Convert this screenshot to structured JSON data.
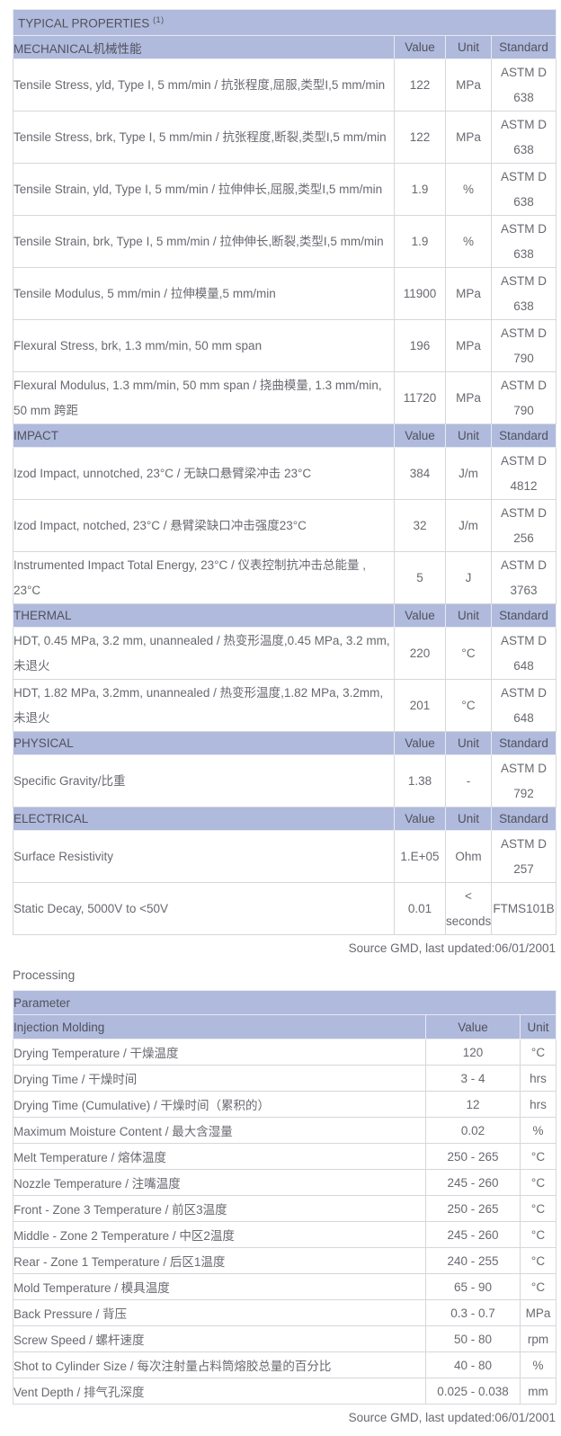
{
  "colors": {
    "header_bg": "#b0badc",
    "header_text": "#4f515c",
    "body_text": "#686970",
    "grid_line": "#d6d7dc",
    "outer_border": "#74757a"
  },
  "typical_properties": {
    "title": "TYPICAL PROPERTIES",
    "title_superscript": "(1)",
    "columns": [
      "Value",
      "Unit",
      "Standard"
    ],
    "sections": [
      {
        "name": "MECHANICAL机械性能",
        "rows": [
          {
            "property": "Tensile Stress, yld, Type I, 5 mm/min / 抗张程度,屈服,类型I,5 mm/min",
            "value": "122",
            "unit": "MPa",
            "standard": "ASTM D 638"
          },
          {
            "property": "Tensile Stress, brk, Type I, 5 mm/min / 抗张程度,断裂,类型I,5 mm/min",
            "value": "122",
            "unit": "MPa",
            "standard": "ASTM D 638"
          },
          {
            "property": "Tensile Strain, yld, Type I, 5 mm/min / 拉伸伸长,屈服,类型I,5 mm/min",
            "value": "1.9",
            "unit": "%",
            "standard": "ASTM D 638"
          },
          {
            "property": "Tensile Strain, brk, Type I, 5 mm/min / 拉伸伸长,断裂,类型I,5 mm/min",
            "value": "1.9",
            "unit": "%",
            "standard": "ASTM D 638"
          },
          {
            "property": "Tensile Modulus, 5 mm/min / 拉伸模量,5 mm/min",
            "value": "11900",
            "unit": "MPa",
            "standard": "ASTM D 638"
          },
          {
            "property": "Flexural Stress, brk, 1.3 mm/min, 50 mm span",
            "value": "196",
            "unit": "MPa",
            "standard": "ASTM D 790"
          },
          {
            "property": "Flexural Modulus, 1.3 mm/min, 50 mm span / 挠曲模量, 1.3 mm/min, 50 mm 跨距",
            "value": "11720",
            "unit": "MPa",
            "standard": "ASTM D 790"
          }
        ]
      },
      {
        "name": "IMPACT",
        "rows": [
          {
            "property": "Izod Impact, unnotched, 23°C / 无缺口悬臂梁冲击 23°C",
            "value": "384",
            "unit": "J/m",
            "standard": "ASTM D 4812"
          },
          {
            "property": "Izod Impact, notched, 23°C / 悬臂梁缺口冲击强度23°C",
            "value": "32",
            "unit": "J/m",
            "standard": "ASTM D 256"
          },
          {
            "property": "Instrumented Impact Total Energy, 23°C / 仪表控制抗冲击总能量 , 23°C",
            "value": "5",
            "unit": "J",
            "standard": "ASTM D 3763"
          }
        ]
      },
      {
        "name": "THERMAL",
        "rows": [
          {
            "property": "HDT, 0.45 MPa, 3.2 mm, unannealed / 热变形温度,0.45 MPa, 3.2 mm,未退火",
            "value": "220",
            "unit": "°C",
            "standard": "ASTM D 648"
          },
          {
            "property": "HDT, 1.82 MPa, 3.2mm, unannealed / 热变形温度,1.82 MPa, 3.2mm,未退火",
            "value": "201",
            "unit": "°C",
            "standard": "ASTM D 648"
          }
        ]
      },
      {
        "name": "PHYSICAL",
        "rows": [
          {
            "property": "Specific Gravity/比重",
            "value": "1.38",
            "unit": "-",
            "standard": "ASTM D 792"
          }
        ]
      },
      {
        "name": "ELECTRICAL",
        "rows": [
          {
            "property": "Surface Resistivity",
            "value": "1.E+05",
            "unit": "Ohm",
            "standard": "ASTM D 257"
          },
          {
            "property": "Static Decay, 5000V to <50V",
            "value": "0.01",
            "unit": "< seconds",
            "standard": "FTMS101B"
          }
        ]
      }
    ],
    "source_note": "Source GMD, last updated:06/01/2001"
  },
  "processing": {
    "label": "Processing",
    "header": "Parameter",
    "subheader": "Injection Molding",
    "columns": [
      "Value",
      "Unit"
    ],
    "rows": [
      {
        "parameter": "Drying Temperature / 干燥温度",
        "value": "120",
        "unit": "°C"
      },
      {
        "parameter": "Drying Time / 干燥时间",
        "value": "3 - 4",
        "unit": "hrs"
      },
      {
        "parameter": "Drying Time (Cumulative) / 干燥时间（累积的）",
        "value": "12",
        "unit": "hrs"
      },
      {
        "parameter": "Maximum Moisture Content / 最大含湿量",
        "value": "0.02",
        "unit": "%"
      },
      {
        "parameter": "Melt Temperature / 熔体温度",
        "value": "250 - 265",
        "unit": "°C"
      },
      {
        "parameter": "Nozzle Temperature / 注嘴温度",
        "value": "245 - 260",
        "unit": "°C"
      },
      {
        "parameter": "Front - Zone 3 Temperature / 前区3温度",
        "value": "250 - 265",
        "unit": "°C"
      },
      {
        "parameter": "Middle - Zone 2 Temperature / 中区2温度",
        "value": "245 - 260",
        "unit": "°C"
      },
      {
        "parameter": "Rear - Zone 1 Temperature / 后区1温度",
        "value": "240 - 255",
        "unit": "°C"
      },
      {
        "parameter": "Mold Temperature / 模具温度",
        "value": "65 - 90",
        "unit": "°C"
      },
      {
        "parameter": "Back Pressure / 背压",
        "value": "0.3 - 0.7",
        "unit": "MPa"
      },
      {
        "parameter": "Screw Speed / 螺杆速度",
        "value": "50 - 80",
        "unit": "rpm"
      },
      {
        "parameter": "Shot to Cylinder Size / 每次注射量占料筒熔胶总量的百分比",
        "value": "40 - 80",
        "unit": "%"
      },
      {
        "parameter": "Vent Depth / 排气孔深度",
        "value": "0.025 - 0.038",
        "unit": "mm"
      }
    ],
    "source_note": "Source GMD, last updated:06/01/2001"
  }
}
